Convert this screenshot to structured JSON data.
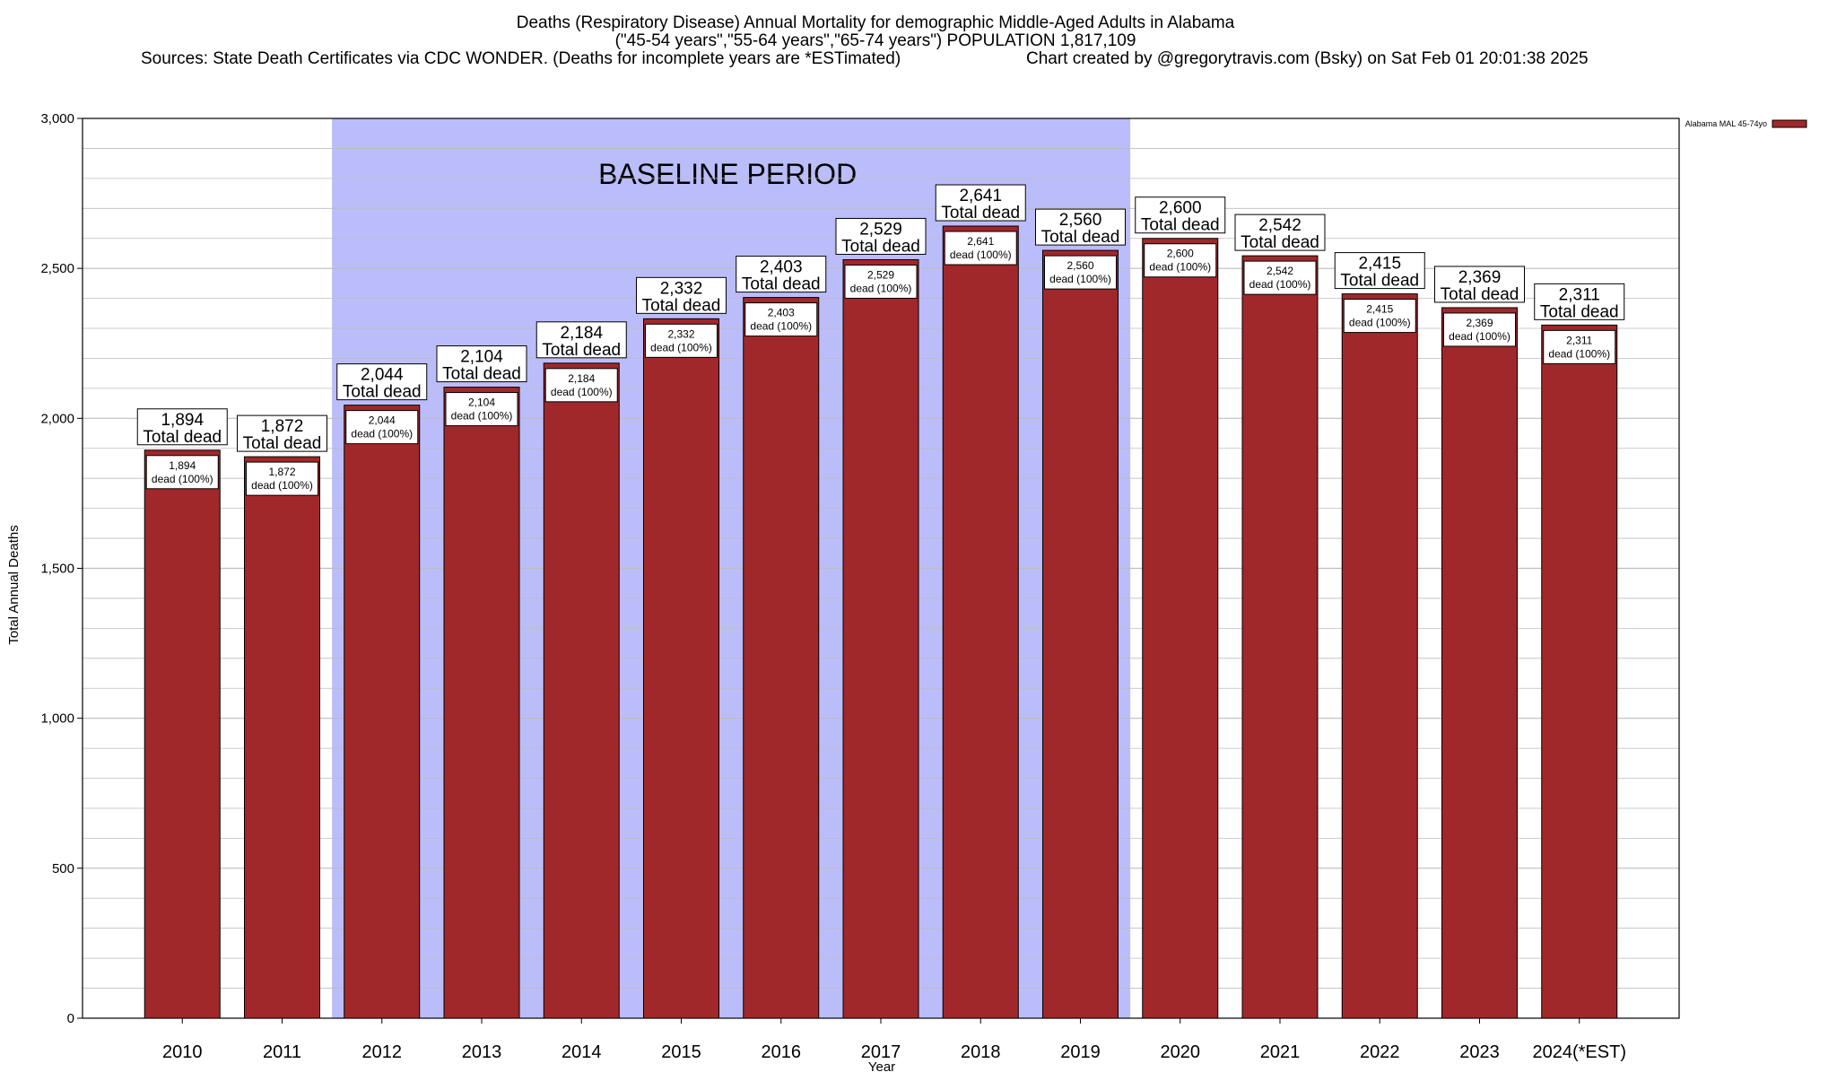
{
  "title_lines": [
    "Deaths (Respiratory Disease) Annual Mortality for demographic Middle-Aged Adults in Alabama",
    "(\"45-54 years\",\"55-64 years\",\"65-74 years\") POPULATION 1,817,109"
  ],
  "sources_text": "Sources: State Death Certificates via CDC WONDER. (Deaths for incomplete years are *ESTimated)",
  "credit_text": "Chart created by @gregorytravis.com (Bsky) on Sat Feb 01 20:01:38 2025",
  "colors": {
    "bar": "#a0282a",
    "baseline_band": "#bbbdfa",
    "grid": "#bdbdbd"
  },
  "chart_data": {
    "type": "bar",
    "xlabel": "Year",
    "ylabel": "Total Annual Deaths",
    "ylim": [
      0,
      3000
    ],
    "y_ticks": [
      0,
      500,
      1000,
      1500,
      2000,
      2500,
      3000
    ],
    "y_tick_labels": [
      "0",
      "500",
      "1,000",
      "1,500",
      "2,000",
      "2,500",
      "3,000"
    ],
    "grid": true,
    "legend_position": "top-right",
    "series": [
      {
        "name": "Alabama MAL 45-74yo",
        "values": [
          1894,
          1872,
          2044,
          2104,
          2184,
          2332,
          2403,
          2529,
          2641,
          2560,
          2600,
          2542,
          2415,
          2369,
          2311
        ]
      }
    ],
    "categories": [
      "2010",
      "2011",
      "2012",
      "2013",
      "2014",
      "2015",
      "2016",
      "2017",
      "2018",
      "2019",
      "2020",
      "2021",
      "2022",
      "2023",
      "2024(*EST)"
    ],
    "value_labels": [
      "1,894",
      "1,872",
      "2,044",
      "2,104",
      "2,184",
      "2,332",
      "2,403",
      "2,529",
      "2,641",
      "2,560",
      "2,600",
      "2,542",
      "2,415",
      "2,369",
      "2,311"
    ],
    "total_label_text": "Total dead",
    "inner_label_text": "dead (100%)",
    "baseline_period": {
      "label": "BASELINE PERIOD",
      "start": "2012",
      "end": "2019"
    }
  }
}
